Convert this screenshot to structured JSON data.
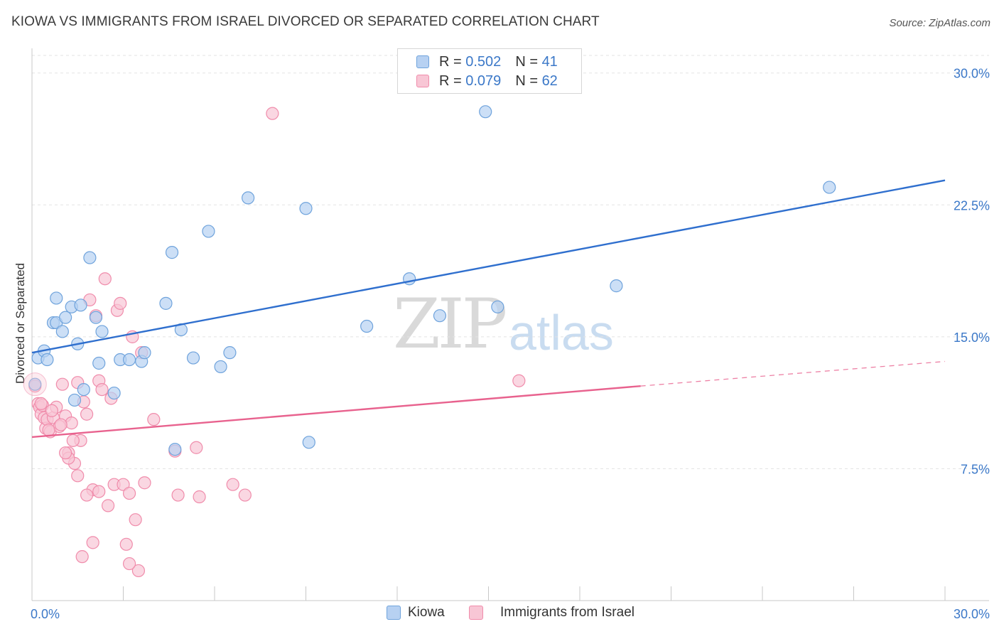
{
  "title": "KIOWA VS IMMIGRANTS FROM ISRAEL DIVORCED OR SEPARATED CORRELATION CHART",
  "source": "Source: ZipAtlas.com",
  "watermark": {
    "zip": "ZIP",
    "atlas": "atlas"
  },
  "colors": {
    "blue": "#6fa3dc",
    "blue_fill": "#b7d1f2",
    "blue_line": "#2f6fce",
    "pink": "#f08cab",
    "pink_fill": "#f8c6d5",
    "pink_line": "#e8628e",
    "axis_text": "#3b78c8",
    "grid": "#e3e3e3"
  },
  "legend": {
    "rows": [
      {
        "r_label": "R = ",
        "r_value": "0.502",
        "n_label": "N = ",
        "n_value": "41"
      },
      {
        "r_label": "R = ",
        "r_value": "0.079",
        "n_label": "N = ",
        "n_value": "62"
      }
    ]
  },
  "bottom_legend": [
    "Kiowa",
    "Immigrants from Israel"
  ],
  "chart_data": {
    "type": "scatter",
    "title": "KIOWA VS IMMIGRANTS FROM ISRAEL DIVORCED OR SEPARATED CORRELATION CHART",
    "xlabel": "",
    "ylabel": "Divorced or Separated",
    "xlim": [
      0,
      30
    ],
    "ylim": [
      0,
      31
    ],
    "x_tick_labels": [
      "0.0%",
      "30.0%"
    ],
    "y_tick_labels": [
      "7.5%",
      "15.0%",
      "22.5%",
      "30.0%"
    ],
    "y_ticks": [
      7.5,
      15.0,
      22.5,
      30.0
    ],
    "grid": true,
    "series": [
      {
        "name": "Kiowa",
        "points": [
          [
            0.2,
            13.8
          ],
          [
            0.4,
            14.2
          ],
          [
            0.5,
            13.7
          ],
          [
            0.7,
            15.8
          ],
          [
            0.8,
            17.2
          ],
          [
            0.8,
            15.8
          ],
          [
            1.0,
            15.3
          ],
          [
            1.1,
            16.1
          ],
          [
            1.3,
            16.7
          ],
          [
            1.4,
            11.4
          ],
          [
            1.5,
            14.6
          ],
          [
            1.6,
            16.8
          ],
          [
            1.7,
            12.0
          ],
          [
            1.9,
            19.5
          ],
          [
            2.1,
            16.1
          ],
          [
            2.2,
            13.5
          ],
          [
            2.3,
            15.3
          ],
          [
            2.7,
            11.8
          ],
          [
            2.9,
            13.7
          ],
          [
            3.2,
            13.7
          ],
          [
            3.6,
            13.6
          ],
          [
            3.7,
            14.1
          ],
          [
            4.4,
            16.9
          ],
          [
            4.6,
            19.8
          ],
          [
            4.7,
            8.6
          ],
          [
            4.9,
            15.4
          ],
          [
            5.3,
            13.8
          ],
          [
            5.8,
            21.0
          ],
          [
            6.2,
            13.3
          ],
          [
            6.5,
            14.1
          ],
          [
            7.1,
            22.9
          ],
          [
            9.0,
            22.3
          ],
          [
            9.1,
            9.0
          ],
          [
            11.0,
            15.6
          ],
          [
            12.4,
            18.3
          ],
          [
            13.4,
            16.2
          ],
          [
            14.9,
            27.8
          ],
          [
            15.3,
            16.7
          ],
          [
            19.2,
            17.9
          ],
          [
            26.2,
            23.5
          ],
          [
            0.1,
            12.3
          ]
        ]
      },
      {
        "name": "Immigrants from Israel",
        "points": [
          [
            0.1,
            12.2
          ],
          [
            0.2,
            11.2
          ],
          [
            0.25,
            11.0
          ],
          [
            0.3,
            10.6
          ],
          [
            0.35,
            11.1
          ],
          [
            0.4,
            10.4
          ],
          [
            0.45,
            9.8
          ],
          [
            0.5,
            10.3
          ],
          [
            0.6,
            9.6
          ],
          [
            0.7,
            10.4
          ],
          [
            0.8,
            11.0
          ],
          [
            0.9,
            9.9
          ],
          [
            1.0,
            12.3
          ],
          [
            1.1,
            10.5
          ],
          [
            1.2,
            8.4
          ],
          [
            1.3,
            10.1
          ],
          [
            1.4,
            7.8
          ],
          [
            1.5,
            12.4
          ],
          [
            1.6,
            9.1
          ],
          [
            1.7,
            11.3
          ],
          [
            1.8,
            10.6
          ],
          [
            1.9,
            17.1
          ],
          [
            2.0,
            6.3
          ],
          [
            2.1,
            16.2
          ],
          [
            2.2,
            12.5
          ],
          [
            2.3,
            12.0
          ],
          [
            2.4,
            18.3
          ],
          [
            2.5,
            5.4
          ],
          [
            2.6,
            11.5
          ],
          [
            2.7,
            6.6
          ],
          [
            2.8,
            16.5
          ],
          [
            2.9,
            16.9
          ],
          [
            3.0,
            6.6
          ],
          [
            3.1,
            3.2
          ],
          [
            3.2,
            6.1
          ],
          [
            3.3,
            15.0
          ],
          [
            3.4,
            4.6
          ],
          [
            3.5,
            1.7
          ],
          [
            3.6,
            14.1
          ],
          [
            3.7,
            6.7
          ],
          [
            4.0,
            10.3
          ],
          [
            4.7,
            8.5
          ],
          [
            4.8,
            6.0
          ],
          [
            5.4,
            8.7
          ],
          [
            5.5,
            5.9
          ],
          [
            6.6,
            6.6
          ],
          [
            7.0,
            6.0
          ],
          [
            7.9,
            27.7
          ],
          [
            16.0,
            12.5
          ],
          [
            1.2,
            8.1
          ],
          [
            1.35,
            9.1
          ],
          [
            1.5,
            7.1
          ],
          [
            1.65,
            2.5
          ],
          [
            2.0,
            3.3
          ],
          [
            3.2,
            2.1
          ],
          [
            0.55,
            9.7
          ],
          [
            0.95,
            10.0
          ],
          [
            1.1,
            8.4
          ],
          [
            2.2,
            6.2
          ],
          [
            0.3,
            11.2
          ],
          [
            1.8,
            6.0
          ],
          [
            0.65,
            10.8
          ]
        ]
      }
    ],
    "trend_lines": [
      {
        "series": "Kiowa",
        "x": [
          0.0,
          30.0
        ],
        "y": [
          14.1,
          23.9
        ],
        "style": "solid"
      },
      {
        "series": "Immigrants from Israel",
        "x": [
          0.0,
          20.0
        ],
        "y": [
          9.3,
          12.2
        ],
        "style": "solid"
      },
      {
        "series": "Immigrants from Israel",
        "x": [
          20.0,
          30.0
        ],
        "y": [
          12.2,
          13.6
        ],
        "style": "dashed"
      }
    ]
  }
}
